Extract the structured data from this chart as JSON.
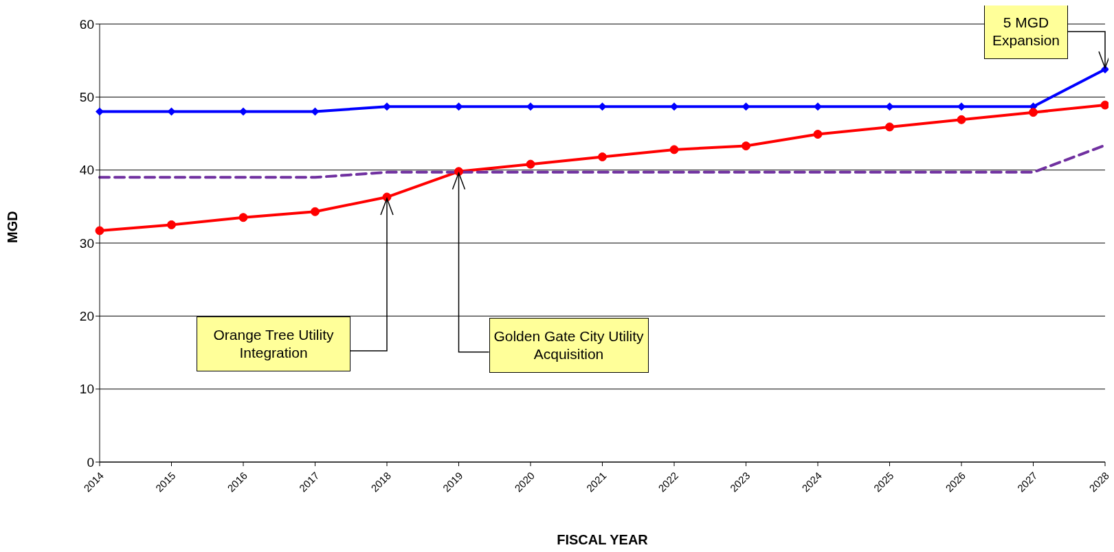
{
  "chart_data": {
    "type": "line",
    "xlabel": "FISCAL YEAR",
    "ylabel": "MGD",
    "categories": [
      "2014",
      "2015",
      "2016",
      "2017",
      "2018",
      "2019",
      "2020",
      "2021",
      "2022",
      "2023",
      "2024",
      "2025",
      "2026",
      "2027",
      "2028"
    ],
    "series": [
      {
        "color": "#0000ff",
        "marker": "diamond",
        "line_style": "solid",
        "values": [
          48,
          48,
          48,
          48,
          48.7,
          48.7,
          48.7,
          48.7,
          48.7,
          48.7,
          48.7,
          48.7,
          48.7,
          48.7,
          53.8
        ]
      },
      {
        "color": "#ff0000",
        "marker": "circle",
        "line_style": "solid",
        "values": [
          31.7,
          32.5,
          33.5,
          34.3,
          36.3,
          39.8,
          40.8,
          41.8,
          42.8,
          43.3,
          44.9,
          45.9,
          46.9,
          47.9,
          48.9
        ]
      },
      {
        "color": "#7030a0",
        "marker": "none",
        "line_style": "dashed",
        "values": [
          39,
          39,
          39,
          39,
          39.7,
          39.7,
          39.7,
          39.7,
          39.7,
          39.7,
          39.7,
          39.7,
          39.7,
          39.7,
          43.4
        ]
      }
    ],
    "ylim": [
      0,
      60
    ],
    "yticks": [
      0,
      10,
      20,
      30,
      40,
      50,
      60
    ],
    "grid": "y",
    "legend": false,
    "annotations": [
      {
        "text": "Orange Tree Utility Integration",
        "x": "2018",
        "y": 36.3
      },
      {
        "text": "Golden Gate City Utility Acquisition",
        "x": "2019",
        "y": 39.8
      },
      {
        "text": "5 MGD Expansion",
        "x": "2028",
        "y": 53.8
      }
    ]
  }
}
